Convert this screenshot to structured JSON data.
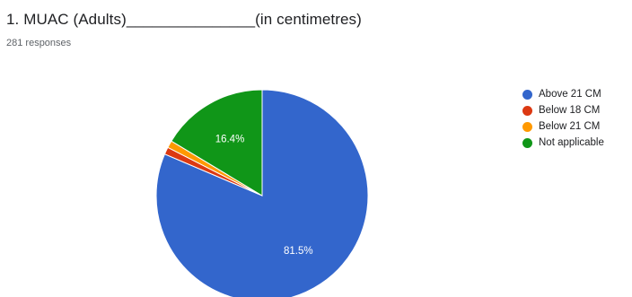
{
  "question": {
    "title": "1. MUAC (Adults)_______________(in centimetres)",
    "responses": "281 responses"
  },
  "chart_data": {
    "type": "pie",
    "categories": [
      "Above 21 CM",
      "Below 18 CM",
      "Below 21 CM",
      "Not applicable"
    ],
    "values": [
      81.5,
      1.1,
      1.1,
      16.4
    ],
    "data_labels": [
      "81.5%",
      "",
      "",
      "16.4%"
    ],
    "colors": [
      "#3366cc",
      "#dc3912",
      "#ff9900",
      "#109618"
    ],
    "legend_position": "right",
    "start_angle_deg": 90,
    "direction": "clockwise"
  }
}
